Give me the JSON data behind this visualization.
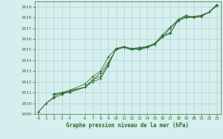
{
  "title": "Graphe pression niveau de la mer (hPa)",
  "background_color": "#d6eeee",
  "grid_color": "#b0d0d0",
  "line_color": "#2d6a2d",
  "xlim": [
    -0.5,
    23.5
  ],
  "ylim": [
    1009,
    1019.5
  ],
  "xticks": [
    0,
    1,
    2,
    3,
    4,
    6,
    7,
    8,
    9,
    10,
    11,
    12,
    13,
    14,
    15,
    16,
    17,
    18,
    19,
    20,
    21,
    22,
    23
  ],
  "yticks": [
    1009,
    1010,
    1011,
    1012,
    1013,
    1014,
    1015,
    1016,
    1017,
    1018,
    1019
  ],
  "series1_x": [
    0,
    1,
    2,
    3,
    4,
    6,
    7,
    8,
    9,
    10,
    11,
    12,
    13,
    14,
    15,
    16,
    17,
    18,
    19,
    20,
    21,
    22,
    23
  ],
  "series1_y": [
    1009.2,
    1010.0,
    1010.5,
    1010.8,
    1011.2,
    1011.5,
    1012.0,
    1012.3,
    1013.5,
    1015.1,
    1015.2,
    1015.0,
    1015.1,
    1015.2,
    1015.5,
    1016.2,
    1016.5,
    1017.8,
    1018.1,
    1018.0,
    1018.1,
    1018.5,
    1019.2
  ],
  "series2_x": [
    0,
    1,
    2,
    3,
    4,
    6,
    7,
    8,
    9,
    10,
    11,
    12,
    13,
    14,
    15,
    16,
    17,
    18,
    19,
    20,
    21,
    22,
    23
  ],
  "series2_y": [
    1009.2,
    1010.0,
    1010.6,
    1011.0,
    1011.1,
    1011.5,
    1012.2,
    1012.5,
    1013.6,
    1015.1,
    1015.2,
    1015.1,
    1015.2,
    1015.3,
    1015.5,
    1016.3,
    1016.6,
    1017.7,
    1018.0,
    1018.1,
    1018.2,
    1018.5,
    1019.1
  ],
  "series3_x": [
    2,
    3,
    4,
    6,
    7,
    8,
    9,
    10,
    11,
    12,
    13,
    14,
    15,
    16,
    17,
    18,
    19,
    20,
    21,
    22,
    23
  ],
  "series3_y": [
    1010.9,
    1011.0,
    1011.2,
    1011.8,
    1012.5,
    1013.0,
    1014.3,
    1015.1,
    1015.3,
    1015.1,
    1015.1,
    1015.3,
    1015.6,
    1016.4,
    1017.1,
    1017.8,
    1018.2,
    1018.0,
    1018.2,
    1018.5,
    1019.2
  ],
  "series4_x": [
    2,
    3,
    4,
    6,
    7,
    8,
    9,
    10,
    11,
    12,
    13,
    14,
    15,
    16,
    17,
    18,
    19,
    20,
    21,
    22,
    23
  ],
  "series4_y": [
    1010.8,
    1010.9,
    1011.0,
    1011.5,
    1012.2,
    1012.8,
    1013.8,
    1015.0,
    1015.2,
    1015.1,
    1015.0,
    1015.2,
    1015.5,
    1016.2,
    1017.0,
    1017.7,
    1018.0,
    1018.0,
    1018.1,
    1018.5,
    1019.1
  ]
}
